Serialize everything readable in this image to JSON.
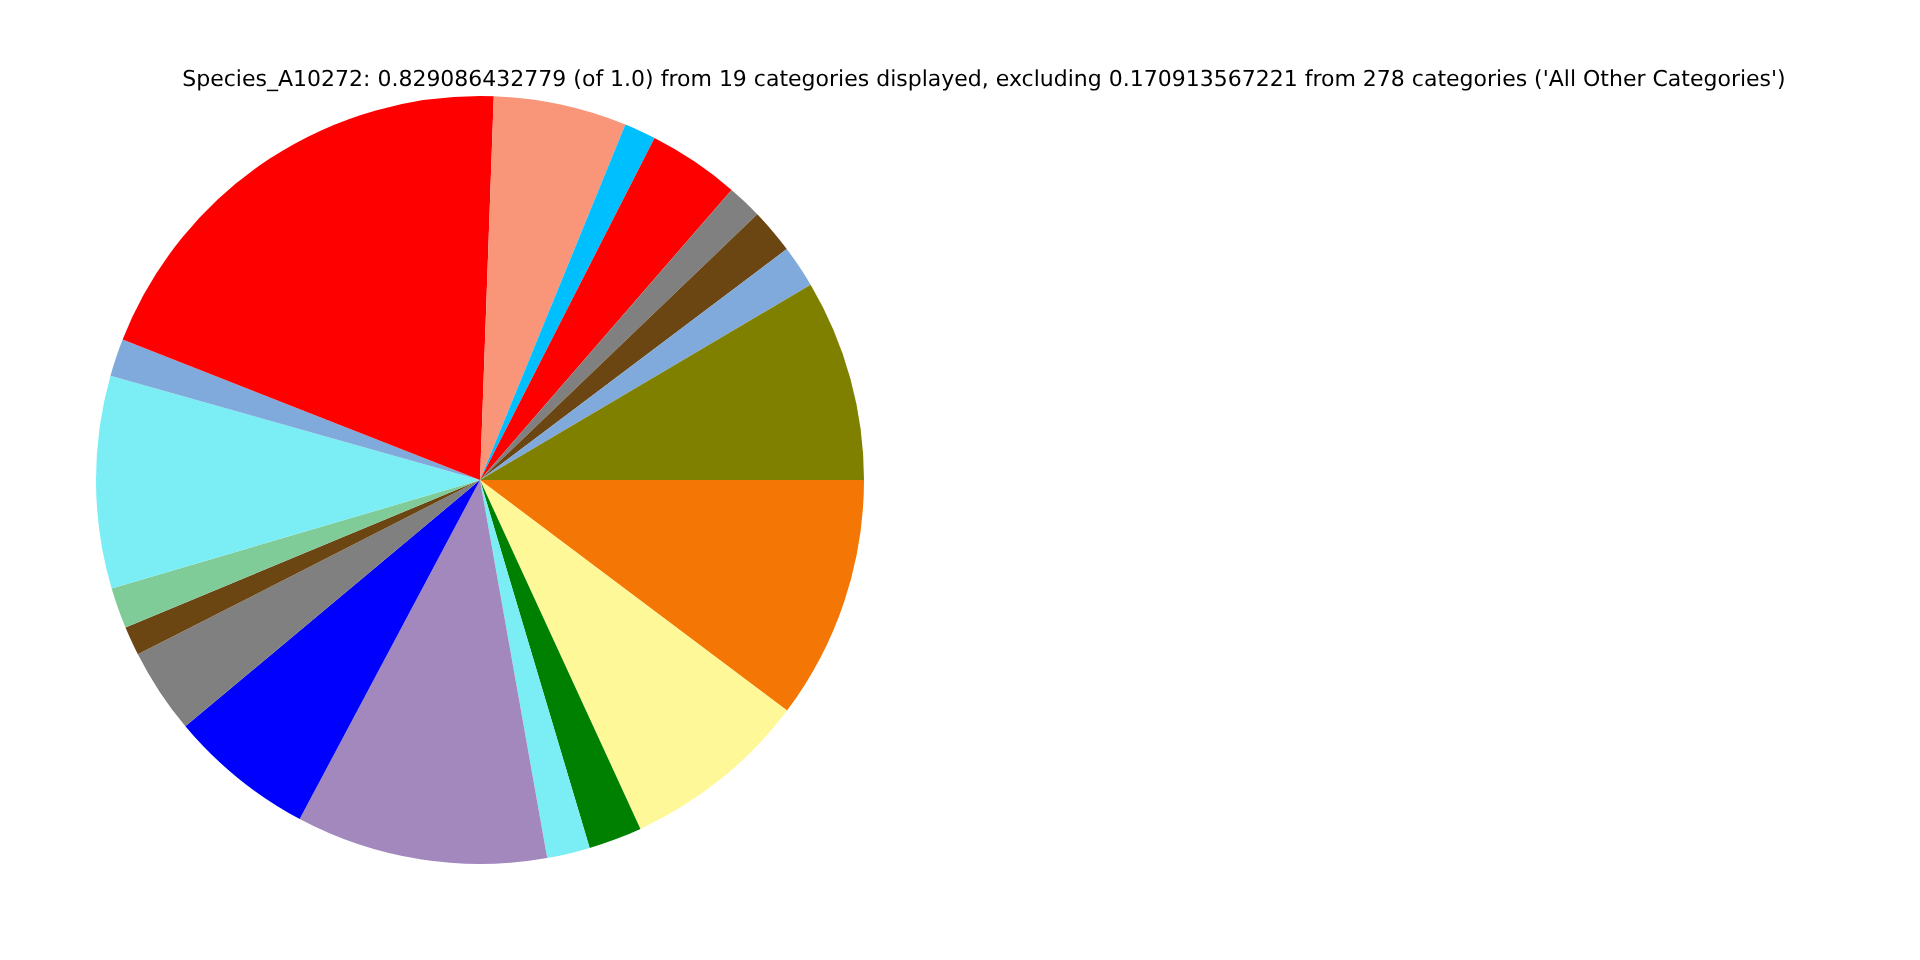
{
  "chart_data": {
    "type": "pie",
    "title": "Species_A10272: 0.829086432779 (of 1.0) from 19 categories displayed, excluding 0.170913567221 from 278 categories ('All Other Categories')",
    "categories": [
      null,
      null,
      null,
      null,
      null,
      null,
      null,
      null,
      null,
      null,
      null,
      null,
      null,
      null,
      null,
      null,
      null,
      null,
      null
    ],
    "values": [
      10.25,
      7.89,
      2.25,
      1.81,
      10.58,
      6.14,
      3.58,
      1.22,
      1.72,
      8.94,
      1.58,
      19.61,
      5.61,
      1.33,
      3.86,
      1.47,
      1.89,
      1.78,
      8.49
    ],
    "colors": [
      "#f47604",
      "#fff899",
      "#008000",
      "#7aeef4",
      "#a388be",
      "#0000ff",
      "#808080",
      "#6b4612",
      "#80cc99",
      "#7aeef4",
      "#7faadb",
      "#ff0000",
      "#f9967a",
      "#00bfff",
      "#ff0000",
      "#808080",
      "#6b4612",
      "#7faadb",
      "#808000"
    ],
    "legend": false
  }
}
